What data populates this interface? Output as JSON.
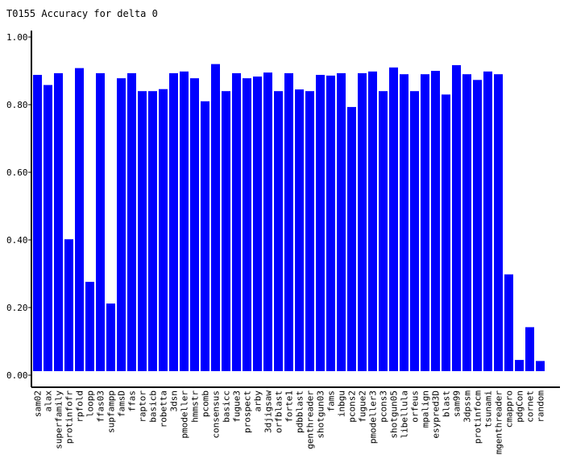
{
  "chart_data": {
    "type": "bar",
    "title": "T0155 Accuracy for delta 0",
    "xlabel": "",
    "ylabel": "",
    "ylim": [
      0,
      1.0
    ],
    "yticks": [
      "0.00",
      "0.20",
      "0.40",
      "0.60",
      "0.80",
      "1.00"
    ],
    "ytick_values": [
      0,
      0.2,
      0.4,
      0.6,
      0.8,
      1.0
    ],
    "bar_color": "#0000ff",
    "grid": false,
    "legend": "none",
    "categories": [
      "sam02",
      "alax",
      "superfamily",
      "protinfofr",
      "rpfold",
      "loopp",
      "ffas03",
      "supfampp",
      "famsD",
      "ffas",
      "raptor",
      "basicb",
      "robetta",
      "3dsn",
      "pmodeller",
      "hmmstr",
      "pcomb",
      "consensus",
      "basicc",
      "fugue3",
      "prospect",
      "arby",
      "3djigsaw",
      "orfblast",
      "forte1",
      "pdbblast",
      "genthreader",
      "shotgun03",
      "fams",
      "inbgu",
      "pcons2",
      "fugue2",
      "pmodeller3",
      "pcons3",
      "shotgun05",
      "libellula",
      "orfeus",
      "mpalign",
      "esypred3D",
      "blast",
      "sam99",
      "3dpssm",
      "protinfocm",
      "tsunami",
      "mgenthreader",
      "cmappro",
      "pdgCon",
      "cornet",
      "random"
    ],
    "values": [
      0.888,
      0.858,
      0.893,
      0.402,
      0.908,
      0.276,
      0.893,
      0.212,
      0.878,
      0.893,
      0.84,
      0.84,
      0.846,
      0.893,
      0.898,
      0.878,
      0.81,
      0.92,
      0.84,
      0.893,
      0.878,
      0.883,
      0.895,
      0.84,
      0.893,
      0.845,
      0.84,
      0.888,
      0.886,
      0.893,
      0.793,
      0.893,
      0.898,
      0.84,
      0.91,
      0.89,
      0.84,
      0.89,
      0.9,
      0.83,
      0.917,
      0.89,
      0.873,
      0.898,
      0.89,
      0.298,
      0.045,
      0.142,
      0.042
    ]
  }
}
